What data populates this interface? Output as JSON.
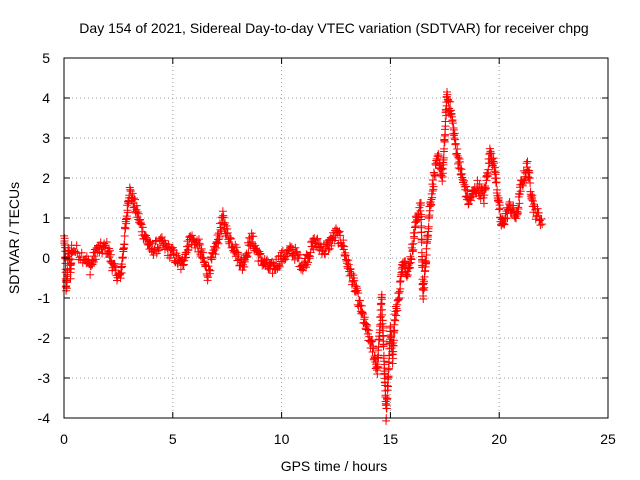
{
  "chart_data": {
    "type": "scatter",
    "title": "Day 154 of 2021, Sidereal Day-to-day VTEC variation (SDTVAR) for receiver chpg",
    "xlabel": "GPS time / hours",
    "ylabel": "SDTVAR / TECUs",
    "xlim": [
      0,
      25
    ],
    "ylim": [
      -4,
      5
    ],
    "xticks": [
      "0",
      "5",
      "10",
      "15",
      "20",
      "25"
    ],
    "yticks": [
      "-4",
      "-3",
      "-2",
      "-1",
      "0",
      "1",
      "2",
      "3",
      "4",
      "5"
    ],
    "grid": true,
    "marker": "plus",
    "color": "#ff0000",
    "series": [
      {
        "name": "SDTVAR",
        "trend": [
          [
            0.0,
            0.5
          ],
          [
            0.05,
            0.2
          ],
          [
            0.1,
            -0.8
          ],
          [
            0.15,
            -0.5
          ],
          [
            0.2,
            0.3
          ],
          [
            0.3,
            -0.45
          ],
          [
            0.35,
            0.25
          ],
          [
            1.0,
            0.0
          ],
          [
            1.2,
            -0.25
          ],
          [
            1.5,
            0.2
          ],
          [
            2.0,
            0.25
          ],
          [
            2.3,
            -0.3
          ],
          [
            2.6,
            -0.5
          ],
          [
            3.0,
            1.7
          ],
          [
            3.2,
            1.4
          ],
          [
            3.6,
            0.7
          ],
          [
            4.0,
            0.2
          ],
          [
            4.5,
            0.35
          ],
          [
            5.0,
            0.1
          ],
          [
            5.4,
            -0.2
          ],
          [
            5.8,
            0.5
          ],
          [
            6.2,
            0.3
          ],
          [
            6.6,
            -0.4
          ],
          [
            7.0,
            0.3
          ],
          [
            7.3,
            1.0
          ],
          [
            7.5,
            0.6
          ],
          [
            7.8,
            0.3
          ],
          [
            8.2,
            -0.2
          ],
          [
            8.6,
            0.5
          ],
          [
            9.0,
            0.0
          ],
          [
            9.5,
            -0.3
          ],
          [
            10.0,
            0.0
          ],
          [
            10.5,
            0.2
          ],
          [
            11.0,
            -0.2
          ],
          [
            11.5,
            0.4
          ],
          [
            12.0,
            0.2
          ],
          [
            12.5,
            0.6
          ],
          [
            12.8,
            0.4
          ],
          [
            13.0,
            -0.1
          ],
          [
            13.3,
            -0.6
          ],
          [
            13.6,
            -1.2
          ],
          [
            13.9,
            -1.8
          ],
          [
            14.2,
            -2.3
          ],
          [
            14.4,
            -2.8
          ],
          [
            14.6,
            -1.0
          ],
          [
            14.8,
            -3.9
          ],
          [
            14.9,
            -3.0
          ],
          [
            15.0,
            -1.7
          ],
          [
            15.1,
            -2.5
          ],
          [
            15.2,
            -1.5
          ],
          [
            15.4,
            -0.9
          ],
          [
            15.6,
            0.0
          ],
          [
            15.8,
            -0.4
          ],
          [
            16.0,
            0.2
          ],
          [
            16.2,
            1.0
          ],
          [
            16.4,
            1.3
          ],
          [
            16.5,
            -1.0
          ],
          [
            16.8,
            1.2
          ],
          [
            17.0,
            2.0
          ],
          [
            17.2,
            2.5
          ],
          [
            17.4,
            2.0
          ],
          [
            17.6,
            4.1
          ],
          [
            17.8,
            3.6
          ],
          [
            18.0,
            2.8
          ],
          [
            18.3,
            2.0
          ],
          [
            18.6,
            1.4
          ],
          [
            19.0,
            1.8
          ],
          [
            19.3,
            1.5
          ],
          [
            19.6,
            2.7
          ],
          [
            19.8,
            2.2
          ],
          [
            20.1,
            0.8
          ],
          [
            20.5,
            1.3
          ],
          [
            20.8,
            1.0
          ],
          [
            21.0,
            1.8
          ],
          [
            21.3,
            2.3
          ],
          [
            21.6,
            1.2
          ],
          [
            22.0,
            0.9
          ]
        ]
      }
    ]
  }
}
